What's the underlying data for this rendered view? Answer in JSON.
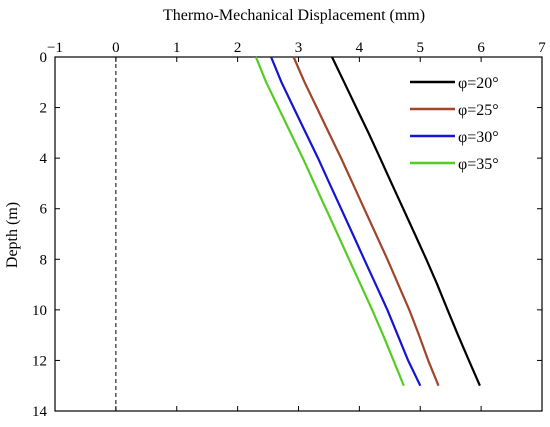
{
  "chart_data": {
    "type": "line",
    "xlabel": "Thermo-Mechanical Displacement (mm)",
    "ylabel": "Depth (m)",
    "xlim": [
      -1,
      7
    ],
    "ylim": [
      0,
      14
    ],
    "x_axis_position": "top",
    "y_axis_inverted": true,
    "x_ticks": [
      -1,
      0,
      1,
      2,
      3,
      4,
      5,
      6,
      7
    ],
    "y_ticks": [
      0,
      2,
      4,
      6,
      8,
      10,
      12,
      14
    ],
    "reference_line": {
      "x": 0,
      "style": "dashed"
    },
    "legend_position": "top-right",
    "grid": false,
    "series": [
      {
        "name": "φ=20°",
        "color": "#000000",
        "points": [
          [
            3.55,
            0
          ],
          [
            3.75,
            1
          ],
          [
            3.95,
            2
          ],
          [
            4.15,
            3
          ],
          [
            4.34,
            4
          ],
          [
            4.53,
            5
          ],
          [
            4.72,
            6
          ],
          [
            4.91,
            7
          ],
          [
            5.1,
            8
          ],
          [
            5.28,
            9
          ],
          [
            5.45,
            10
          ],
          [
            5.62,
            11
          ],
          [
            5.8,
            12
          ],
          [
            5.98,
            13
          ]
        ]
      },
      {
        "name": "φ=25°",
        "color": "#a0442a",
        "points": [
          [
            2.92,
            0
          ],
          [
            3.1,
            1
          ],
          [
            3.3,
            2
          ],
          [
            3.5,
            3
          ],
          [
            3.7,
            4
          ],
          [
            3.89,
            5
          ],
          [
            4.08,
            6
          ],
          [
            4.27,
            7
          ],
          [
            4.46,
            8
          ],
          [
            4.64,
            9
          ],
          [
            4.82,
            10
          ],
          [
            4.98,
            11
          ],
          [
            5.13,
            12
          ],
          [
            5.3,
            13
          ]
        ]
      },
      {
        "name": "φ=30°",
        "color": "#1414d2",
        "points": [
          [
            2.55,
            0
          ],
          [
            2.72,
            1
          ],
          [
            2.92,
            2
          ],
          [
            3.12,
            3
          ],
          [
            3.32,
            4
          ],
          [
            3.51,
            5
          ],
          [
            3.7,
            6
          ],
          [
            3.89,
            7
          ],
          [
            4.08,
            8
          ],
          [
            4.27,
            9
          ],
          [
            4.46,
            10
          ],
          [
            4.63,
            11
          ],
          [
            4.8,
            12
          ],
          [
            5.0,
            13
          ]
        ]
      },
      {
        "name": "φ=35°",
        "color": "#55cc22",
        "points": [
          [
            2.3,
            0
          ],
          [
            2.47,
            1
          ],
          [
            2.67,
            2
          ],
          [
            2.87,
            3
          ],
          [
            3.07,
            4
          ],
          [
            3.26,
            5
          ],
          [
            3.45,
            6
          ],
          [
            3.64,
            7
          ],
          [
            3.83,
            8
          ],
          [
            4.02,
            9
          ],
          [
            4.21,
            10
          ],
          [
            4.39,
            11
          ],
          [
            4.56,
            12
          ],
          [
            4.73,
            13
          ]
        ]
      }
    ]
  }
}
